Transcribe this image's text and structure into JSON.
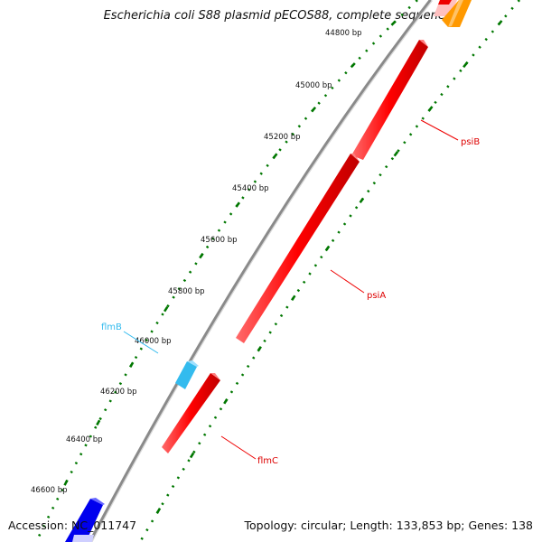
{
  "title": "Escherichia coli S88 plasmid pECOS88, complete sequence",
  "accession": "Accession: NC_011747",
  "topology": "Topology: circular; Length: 133,853 bp; Genes: 138",
  "ticks": [
    {
      "label": "44800 bp"
    },
    {
      "label": "45000 bp"
    },
    {
      "label": "45200 bp"
    },
    {
      "label": "45400 bp"
    },
    {
      "label": "45600 bp"
    },
    {
      "label": "45800 bp"
    },
    {
      "label": "46000 bp"
    },
    {
      "label": "46200 bp"
    },
    {
      "label": "46400 bp"
    },
    {
      "label": "46600 bp"
    }
  ],
  "genes": [
    {
      "name": "psiB",
      "strand": "reverse",
      "color": "#ff0000"
    },
    {
      "name": "psiA",
      "strand": "reverse",
      "color": "#ff0000"
    },
    {
      "name": "flmC",
      "strand": "reverse",
      "color": "#ff0000"
    },
    {
      "name": "flmB",
      "strand": "forward",
      "color": "#33bbee"
    }
  ],
  "colors": {
    "backbone": "#8a8a8a",
    "tick_dots": "#007700",
    "reverse_gene": "#ff0000",
    "forward_gene_cyan": "#33bbee",
    "forward_gene_blue": "#0000ee",
    "orange_gene": "#ff9900"
  }
}
